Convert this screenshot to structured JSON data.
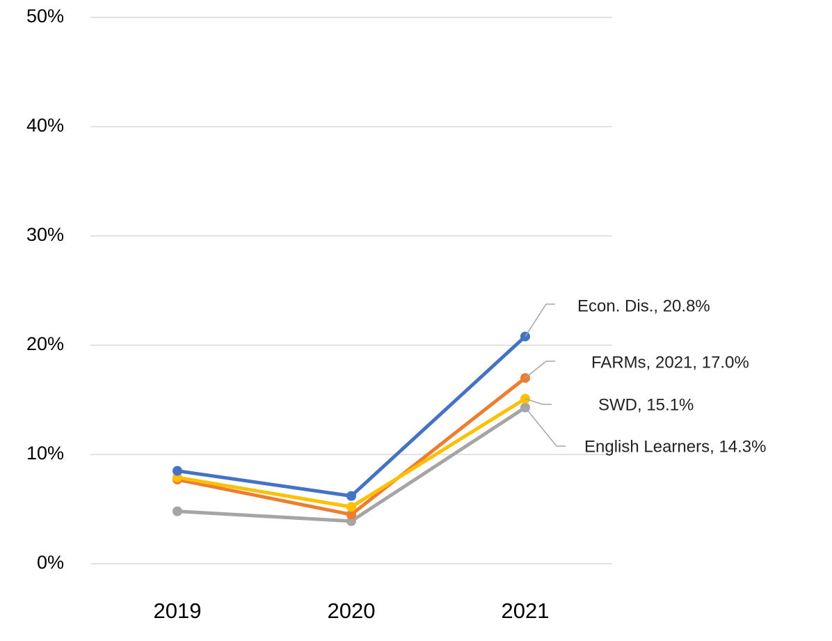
{
  "chart_data": {
    "type": "line",
    "categories": [
      "2019",
      "2020",
      "2021"
    ],
    "series": [
      {
        "color": "#4472c4",
        "values": [
          8.5,
          6.2,
          20.8
        ],
        "value_labels": [
          null,
          null,
          "Econ. Dis., 20.8%"
        ]
      },
      {
        "color": "#ed7d31",
        "values": [
          7.7,
          4.5,
          17.0
        ],
        "value_labels": [
          null,
          null,
          "FARMs, 2021, 17.0%"
        ]
      },
      {
        "color": "#ffc000",
        "values": [
          7.9,
          5.2,
          15.1
        ],
        "value_labels": [
          null,
          null,
          "SWD, 15.1%"
        ]
      },
      {
        "color": "#a5a5a5",
        "values": [
          4.8,
          3.9,
          14.3
        ],
        "value_labels": [
          null,
          null,
          "English Learners, 14.3%"
        ]
      }
    ],
    "ylim": [
      0,
      50
    ],
    "yticks": [
      {
        "value": 0,
        "label": "0%"
      },
      {
        "value": 10,
        "label": "10%"
      },
      {
        "value": 20,
        "label": "20%"
      },
      {
        "value": 30,
        "label": "30%"
      },
      {
        "value": 40,
        "label": "40%"
      },
      {
        "value": 50,
        "label": "50%"
      }
    ],
    "grid": true
  }
}
